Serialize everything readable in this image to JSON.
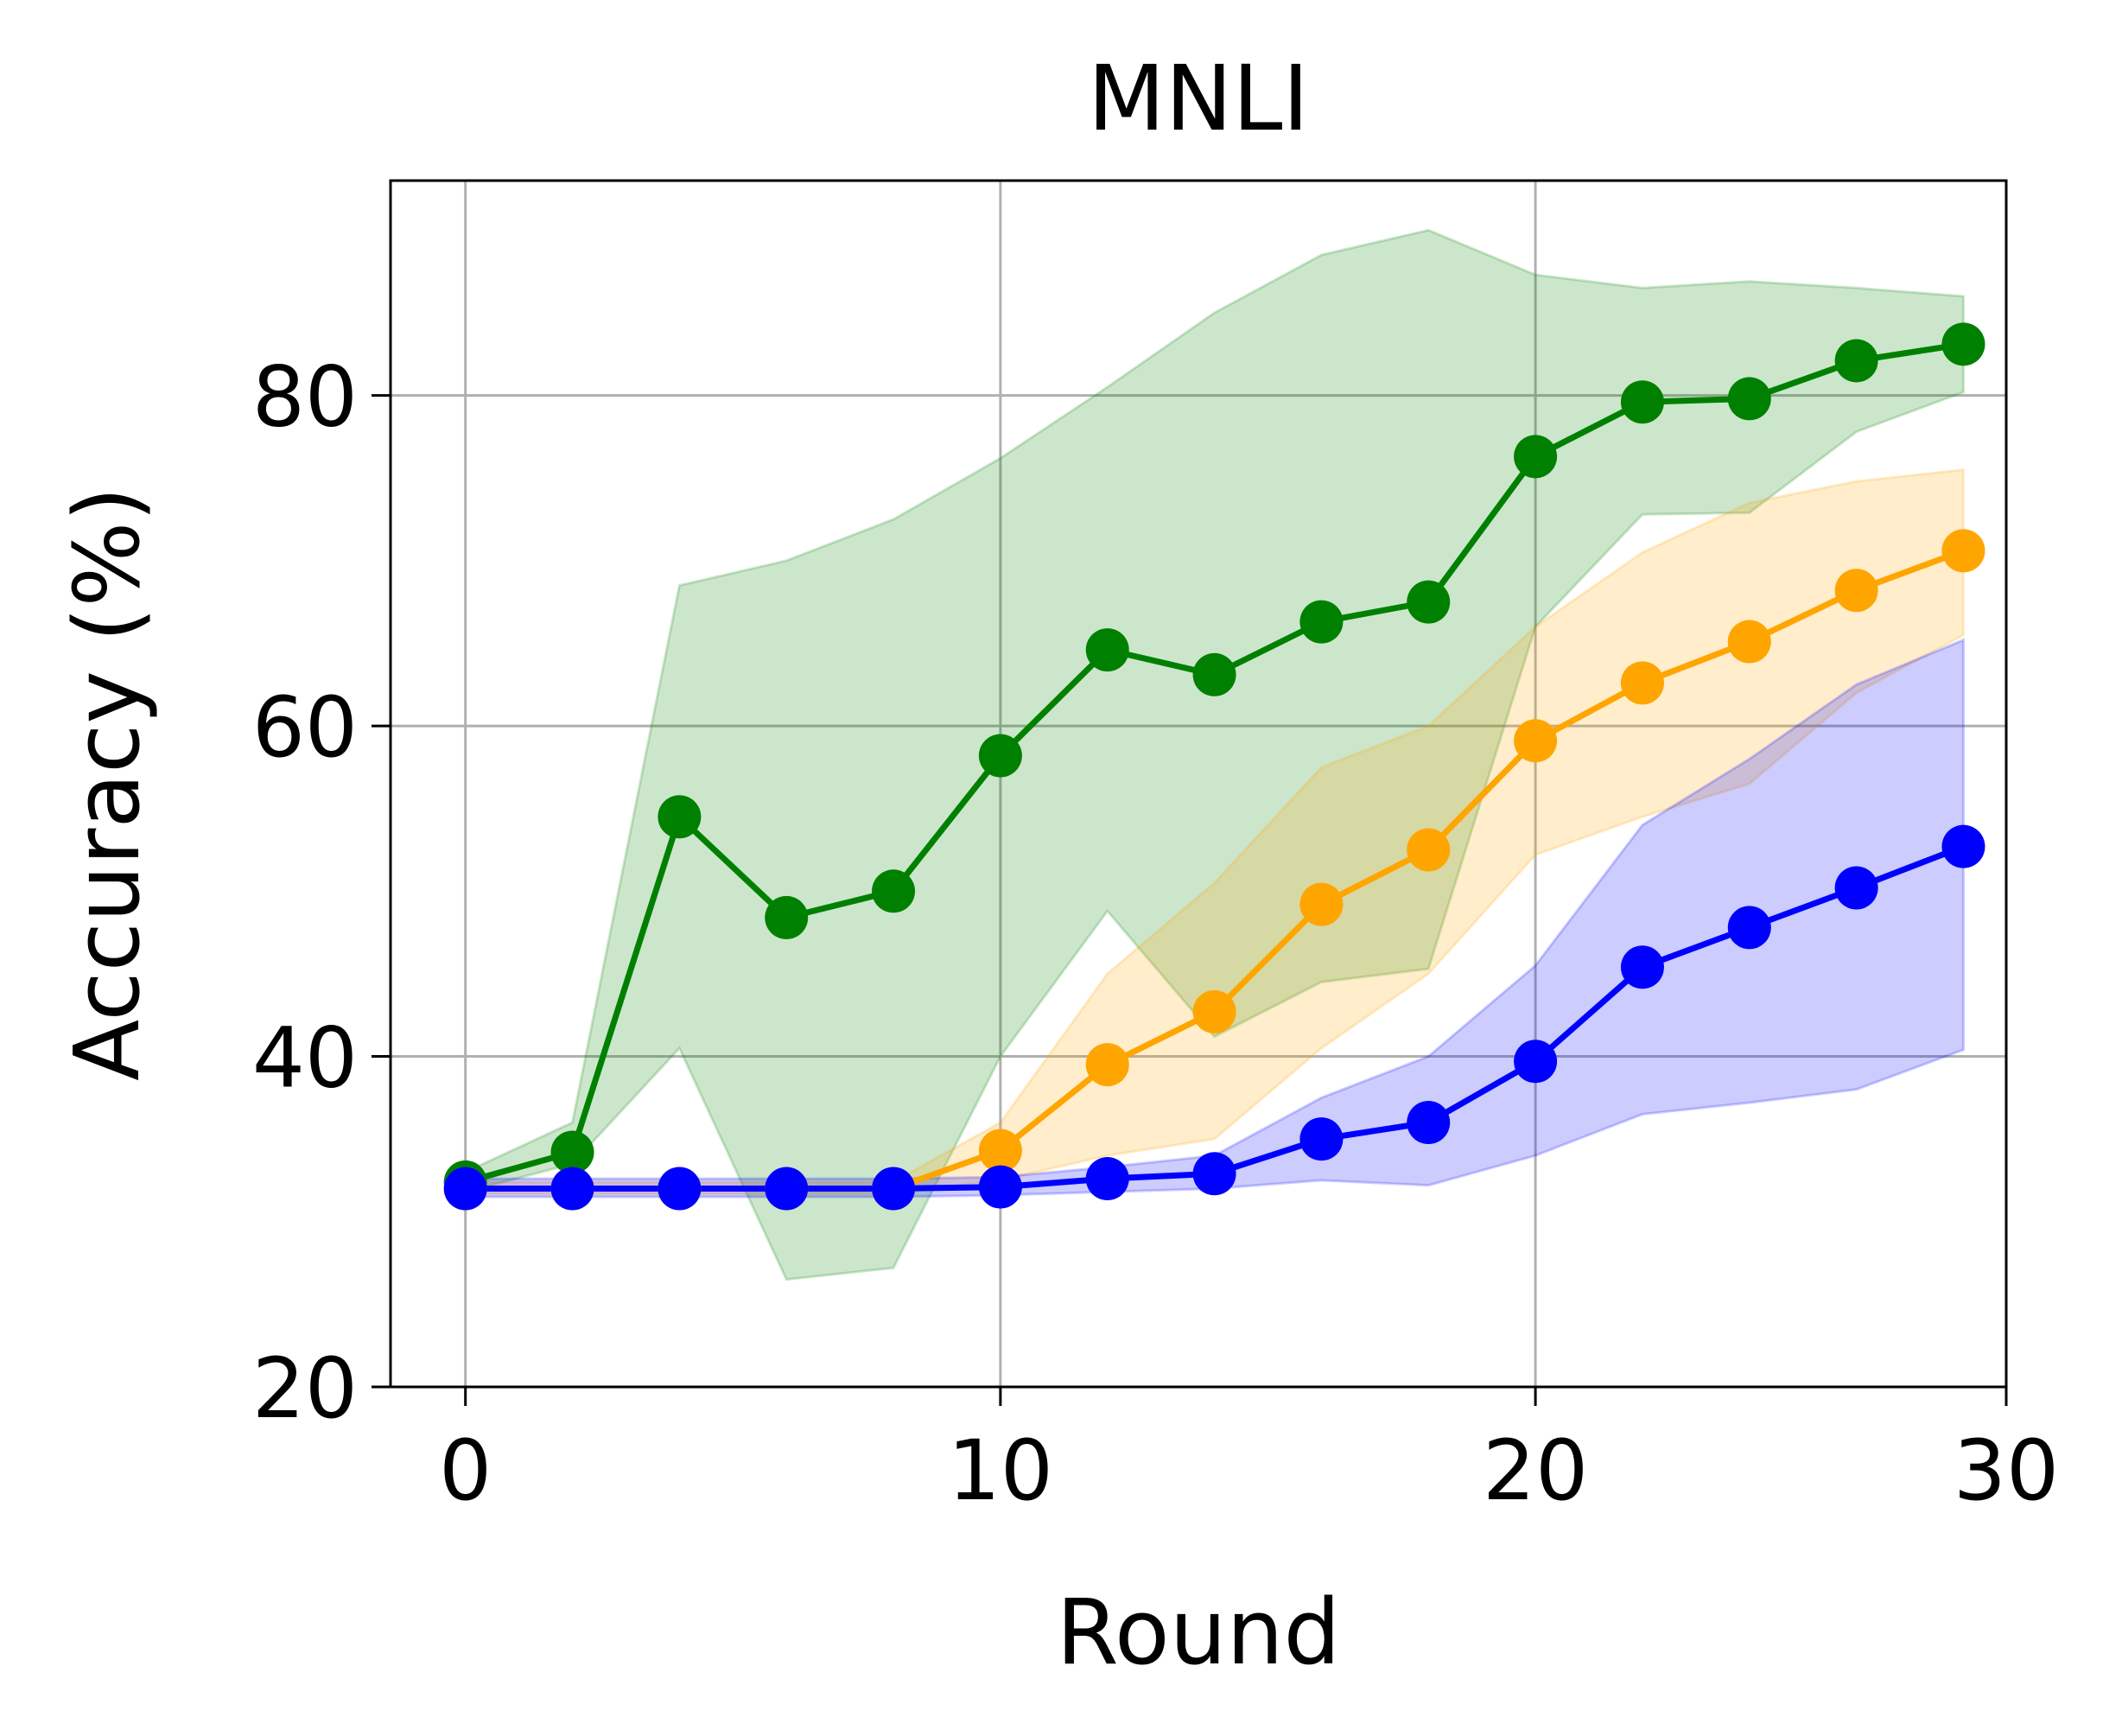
{
  "chart_data": {
    "type": "line",
    "title": "MNLI",
    "xlabel": "Round",
    "ylabel": "Accuracy (%)",
    "xlim": [
      -1.4,
      28.8
    ],
    "ylim": [
      20,
      93
    ],
    "xticks": [
      0,
      10,
      20,
      30
    ],
    "yticks": [
      20,
      40,
      60,
      80
    ],
    "grid": true,
    "x": [
      0,
      2,
      4,
      6,
      8,
      10,
      12,
      14,
      16,
      18,
      20,
      22,
      24,
      26,
      28
    ],
    "series": [
      {
        "color": "#008000",
        "values": [
          32.4,
          34.2,
          54.5,
          48.4,
          50.0,
          58.2,
          64.6,
          63.1,
          66.3,
          67.5,
          76.3,
          79.6,
          79.8,
          82.1,
          83.1
        ],
        "lower": [
          31.8,
          33.5,
          40.5,
          26.5,
          27.2,
          40.0,
          48.8,
          41.2,
          44.5,
          45.3,
          66.0,
          72.8,
          72.9,
          77.8,
          80.2
        ],
        "upper": [
          33.0,
          36.0,
          68.5,
          70.0,
          72.5,
          76.2,
          80.5,
          85.0,
          88.5,
          90.0,
          87.3,
          86.5,
          86.9,
          86.5,
          86.0
        ]
      },
      {
        "color": "#FFA500",
        "values": [
          32.0,
          32.0,
          32.0,
          32.0,
          32.0,
          34.3,
          39.5,
          42.7,
          49.2,
          52.5,
          59.1,
          62.6,
          65.1,
          68.2,
          70.6
        ],
        "lower": [
          31.7,
          31.7,
          31.7,
          31.7,
          31.7,
          32.5,
          34.0,
          35.0,
          40.5,
          45.0,
          52.2,
          54.5,
          56.5,
          62.0,
          65.5
        ],
        "upper": [
          32.4,
          32.4,
          32.4,
          32.4,
          32.4,
          36.0,
          45.0,
          50.5,
          57.5,
          60.0,
          66.0,
          70.5,
          73.5,
          74.8,
          75.5
        ]
      },
      {
        "color": "#0000FF",
        "values": [
          32.0,
          32.0,
          32.0,
          32.0,
          32.0,
          32.1,
          32.6,
          32.9,
          35.0,
          36.0,
          39.7,
          45.4,
          47.8,
          50.2,
          52.7
        ],
        "lower": [
          31.5,
          31.5,
          31.5,
          31.5,
          31.5,
          31.6,
          31.8,
          32.0,
          32.5,
          32.2,
          34.0,
          36.5,
          37.2,
          38.0,
          40.4
        ],
        "upper": [
          32.6,
          32.6,
          32.6,
          32.6,
          32.6,
          32.7,
          33.3,
          34.0,
          37.5,
          40.0,
          45.5,
          54.0,
          58.0,
          62.5,
          65.2
        ]
      }
    ]
  }
}
